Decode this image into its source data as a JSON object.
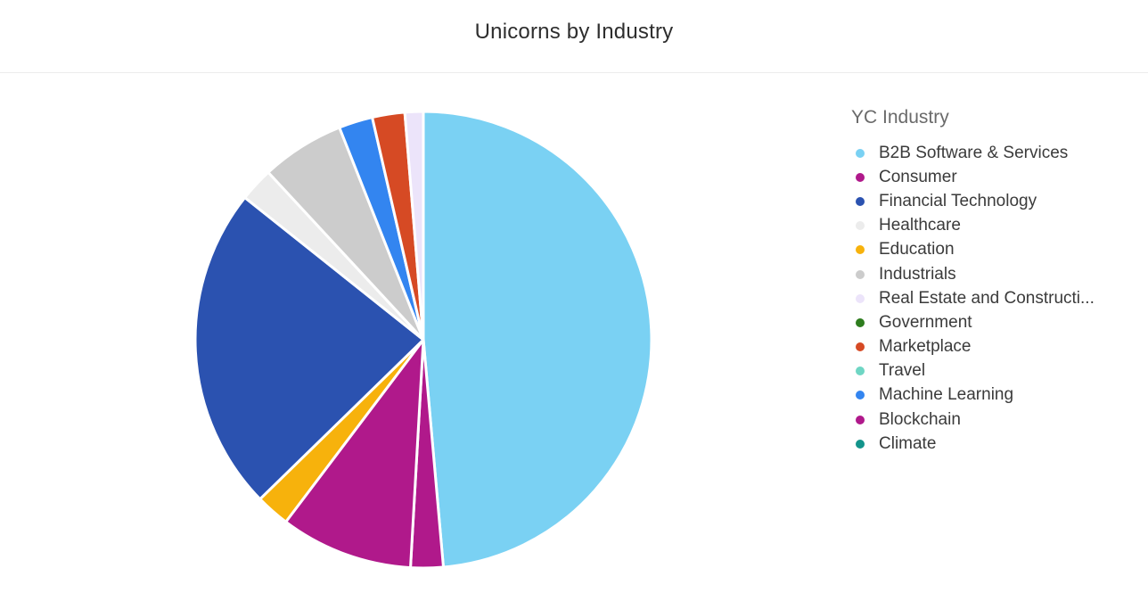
{
  "chart_data": {
    "type": "pie",
    "title": "Unicorns by Industry",
    "legend_title": "YC Industry",
    "legend_position": "right",
    "categories": [
      "B2B Software & Services",
      "Consumer",
      "Financial Technology",
      "Healthcare",
      "Education",
      "Industrials",
      "Real Estate and Constructi...",
      "Government",
      "Marketplace",
      "Travel",
      "Machine Learning",
      "Blockchain",
      "Climate"
    ],
    "colors": [
      "#7ad1f3",
      "#b0198b",
      "#2b52b0",
      "#ececec",
      "#f7b20c",
      "#cccccc",
      "#ece4fa",
      "#2e7d1e",
      "#d64a24",
      "#6fd6c4",
      "#3385f0",
      "#b0198b",
      "#13948b"
    ],
    "slices": [
      {
        "name": "B2B Software & Services",
        "value": 48.6,
        "color": "#7ad1f3"
      },
      {
        "name": "Blockchain",
        "value": 2.3,
        "color": "#b0198b"
      },
      {
        "name": "Consumer",
        "value": 9.4,
        "color": "#b0198b"
      },
      {
        "name": "Education",
        "value": 2.4,
        "color": "#f7b20c"
      },
      {
        "name": "Financial Technology",
        "value": 23.0,
        "color": "#2b52b0"
      },
      {
        "name": "Healthcare",
        "value": 2.4,
        "color": "#ececec"
      },
      {
        "name": "Industrials",
        "value": 5.9,
        "color": "#cccccc"
      },
      {
        "name": "Machine Learning",
        "value": 2.4,
        "color": "#3385f0"
      },
      {
        "name": "Marketplace",
        "value": 2.3,
        "color": "#d64a24"
      },
      {
        "name": "Real Estate and Constructi...",
        "value": 1.3,
        "color": "#ece4fa"
      }
    ]
  }
}
